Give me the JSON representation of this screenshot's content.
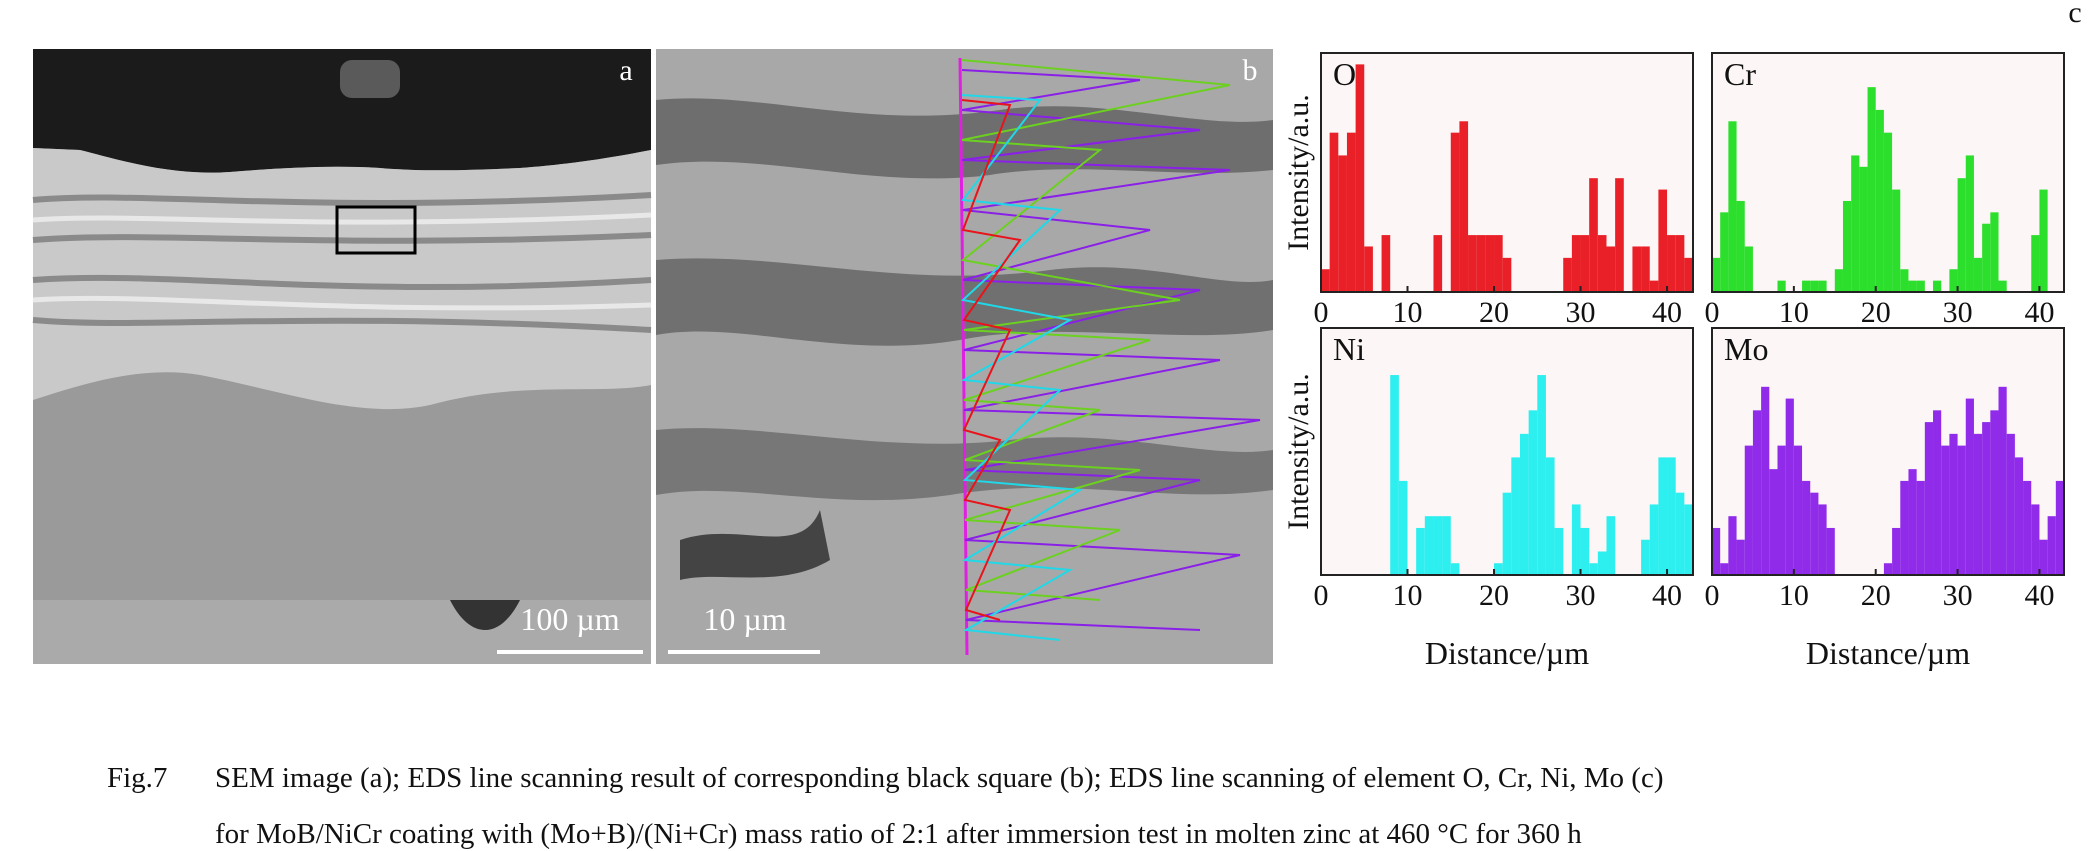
{
  "figure": {
    "panel_a": {
      "label": "a",
      "scale_bar": "100 µm"
    },
    "panel_b": {
      "label": "b",
      "scale_bar": "10 µm"
    },
    "panel_c": {
      "label": "c"
    },
    "caption": {
      "label": "Fig.7",
      "lines": [
        "SEM image (a); EDS line scanning result of corresponding black square (b); EDS line scanning of element O, Cr, Ni, Mo (c)",
        "for MoB/NiCr coating with (Mo+B)/(Ni+Cr) mass ratio of 2:1 after immersion test in molten zinc at 460 °C for 360 h"
      ]
    }
  },
  "chart_data": [
    {
      "type": "bar",
      "title": "O",
      "y_label": "Intensity/a.u.",
      "color": "#e8141b",
      "x": [
        0,
        1,
        2,
        3,
        4,
        5,
        6,
        7,
        8,
        9,
        10,
        11,
        12,
        13,
        14,
        15,
        16,
        17,
        18,
        19,
        20,
        21,
        22,
        23,
        24,
        25,
        26,
        27,
        28,
        29,
        30,
        31,
        32,
        33,
        34,
        35,
        36,
        37,
        38,
        39,
        40,
        41,
        42
      ],
      "values": [
        10,
        70,
        60,
        70,
        100,
        20,
        0,
        25,
        0,
        0,
        0,
        0,
        0,
        25,
        0,
        70,
        75,
        25,
        25,
        25,
        25,
        15,
        0,
        0,
        0,
        0,
        0,
        0,
        15,
        25,
        25,
        50,
        25,
        20,
        50,
        0,
        20,
        20,
        5,
        45,
        25,
        25,
        15
      ],
      "xlim": [
        0,
        43
      ],
      "ylim": [
        0,
        105
      ],
      "xticks": [
        0,
        10,
        20,
        30,
        40
      ]
    },
    {
      "type": "bar",
      "title": "Cr",
      "color": "#22dd22",
      "x": [
        0,
        1,
        2,
        3,
        4,
        5,
        6,
        7,
        8,
        9,
        10,
        11,
        12,
        13,
        14,
        15,
        16,
        17,
        18,
        19,
        20,
        21,
        22,
        23,
        24,
        25,
        26,
        27,
        28,
        29,
        30,
        31,
        32,
        33,
        34,
        35,
        36,
        37,
        38,
        39,
        40,
        41,
        42
      ],
      "values": [
        15,
        35,
        75,
        40,
        20,
        0,
        0,
        0,
        5,
        0,
        0,
        5,
        5,
        5,
        0,
        10,
        40,
        60,
        55,
        90,
        80,
        70,
        45,
        10,
        5,
        5,
        0,
        5,
        0,
        10,
        50,
        60,
        15,
        30,
        35,
        5,
        0,
        0,
        0,
        25,
        45,
        0,
        0
      ],
      "xlim": [
        0,
        43
      ],
      "ylim": [
        0,
        105
      ],
      "xticks": [
        0,
        10,
        20,
        30,
        40
      ]
    },
    {
      "type": "bar",
      "title": "Ni",
      "y_label": "Intensity/a.u.",
      "x_label": "Distance/µm",
      "color": "#22eeee",
      "x": [
        0,
        1,
        2,
        3,
        4,
        5,
        6,
        7,
        8,
        9,
        10,
        11,
        12,
        13,
        14,
        15,
        16,
        17,
        18,
        19,
        20,
        21,
        22,
        23,
        24,
        25,
        26,
        27,
        28,
        29,
        30,
        31,
        32,
        33,
        34,
        35,
        36,
        37,
        38,
        39,
        40,
        41,
        42
      ],
      "values": [
        0,
        0,
        0,
        0,
        0,
        0,
        0,
        0,
        85,
        40,
        0,
        20,
        25,
        25,
        25,
        5,
        0,
        0,
        0,
        0,
        5,
        35,
        50,
        60,
        70,
        85,
        50,
        20,
        0,
        30,
        20,
        5,
        10,
        25,
        0,
        0,
        0,
        15,
        30,
        50,
        50,
        35,
        30
      ],
      "xlim": [
        0,
        43
      ],
      "ylim": [
        0,
        105
      ],
      "xticks": [
        0,
        10,
        20,
        30,
        40
      ]
    },
    {
      "type": "bar",
      "title": "Mo",
      "x_label": "Distance/µm",
      "color": "#8a20e8",
      "x": [
        0,
        1,
        2,
        3,
        4,
        5,
        6,
        7,
        8,
        9,
        10,
        11,
        12,
        13,
        14,
        15,
        16,
        17,
        18,
        19,
        20,
        21,
        22,
        23,
        24,
        25,
        26,
        27,
        28,
        29,
        30,
        31,
        32,
        33,
        34,
        35,
        36,
        37,
        38,
        39,
        40,
        41,
        42
      ],
      "values": [
        20,
        5,
        25,
        15,
        55,
        70,
        80,
        45,
        55,
        75,
        55,
        40,
        35,
        30,
        20,
        0,
        0,
        0,
        0,
        0,
        0,
        5,
        20,
        40,
        45,
        40,
        65,
        70,
        55,
        60,
        55,
        75,
        60,
        65,
        70,
        80,
        60,
        50,
        40,
        30,
        15,
        25,
        40
      ],
      "xlim": [
        0,
        43
      ],
      "ylim": [
        0,
        105
      ],
      "xticks": [
        0,
        10,
        20,
        30,
        40
      ]
    }
  ]
}
